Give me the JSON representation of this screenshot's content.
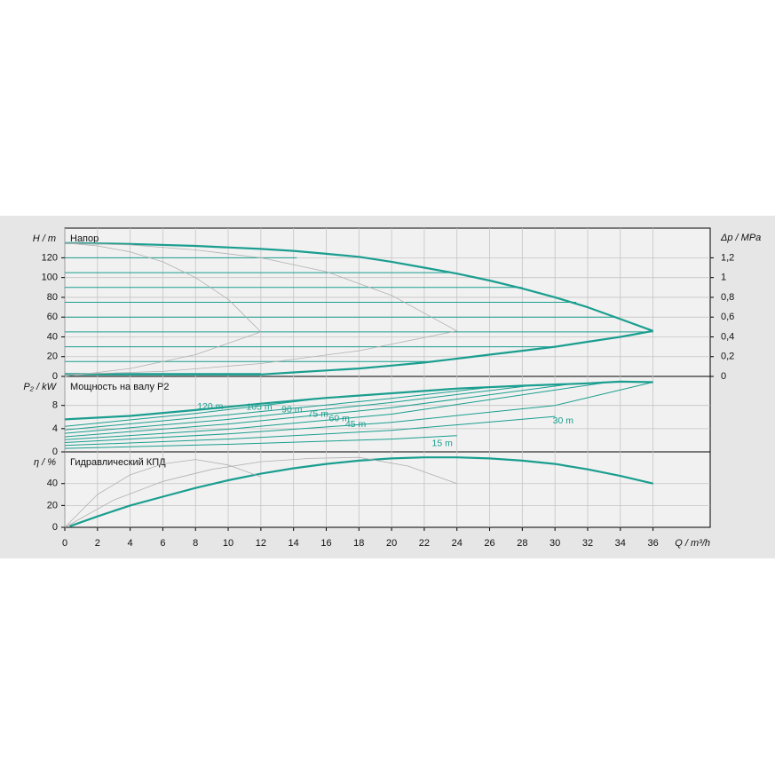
{
  "chart_data": [
    {
      "type": "line",
      "title": "Напор",
      "ylabel": "H / m",
      "y2label": "Δp / MPa",
      "ylim": [
        0,
        150
      ],
      "yticks": [
        0,
        20,
        40,
        60,
        80,
        100,
        120
      ],
      "y2lim": [
        0,
        1.5
      ],
      "y2ticks": [
        0,
        {
          "value": 0.2,
          "label": "0,2"
        },
        {
          "value": 0.4,
          "label": "0,4"
        },
        {
          "value": 0.6,
          "label": "0,6"
        },
        {
          "value": 0.8,
          "label": "0,8"
        },
        {
          "value": 1,
          "label": "1"
        },
        {
          "value": 1.2,
          "label": "1,2"
        }
      ],
      "grid": true,
      "series": [
        {
          "color": "#1a9e8f",
          "width": 2.2,
          "x": [
            0,
            4,
            8,
            12,
            14,
            16,
            18,
            20,
            22,
            24,
            26,
            28,
            30,
            32,
            34,
            36
          ],
          "values": [
            135,
            134,
            132,
            129,
            127,
            124,
            121,
            116,
            110,
            104,
            97,
            89,
            80,
            70,
            58,
            46
          ]
        },
        {
          "color": "#1a9e8f",
          "width": 2.2,
          "x": [
            0,
            8,
            12,
            14,
            16,
            18,
            20,
            22,
            24,
            26,
            28,
            30,
            32,
            34,
            36
          ],
          "values": [
            2,
            2,
            2,
            4,
            6,
            8,
            11,
            14,
            18,
            22,
            26,
            30,
            35,
            40,
            46
          ]
        },
        {
          "color": "#1a9e8f",
          "width": 1,
          "x": [
            0,
            14.2
          ],
          "values": [
            120,
            120
          ]
        },
        {
          "color": "#1a9e8f",
          "width": 1,
          "x": [
            0,
            23.5
          ],
          "values": [
            105,
            105
          ]
        },
        {
          "color": "#1a9e8f",
          "width": 1,
          "x": [
            0,
            28
          ],
          "values": [
            90,
            90
          ]
        },
        {
          "color": "#1a9e8f",
          "width": 1,
          "x": [
            0,
            31.3
          ],
          "values": [
            75,
            75
          ]
        },
        {
          "color": "#1a9e8f",
          "width": 1,
          "x": [
            0,
            33.6
          ],
          "values": [
            60,
            60
          ]
        },
        {
          "color": "#1a9e8f",
          "width": 1,
          "x": [
            0,
            36
          ],
          "values": [
            45,
            45
          ]
        },
        {
          "color": "#1a9e8f",
          "width": 1,
          "x": [
            0,
            30
          ],
          "values": [
            30,
            30
          ]
        },
        {
          "color": "#1a9e8f",
          "width": 1,
          "x": [
            0,
            22.2
          ],
          "values": [
            15,
            15
          ]
        },
        {
          "color": "#1a9e8f",
          "width": 1,
          "x": [
            0,
            12
          ],
          "values": [
            3,
            3
          ]
        },
        {
          "color": "#b0b0b0",
          "width": 0.8,
          "x": [
            0,
            2,
            4,
            6,
            8,
            10,
            12
          ],
          "values": [
            135,
            132,
            126,
            116,
            100,
            78,
            45
          ]
        },
        {
          "color": "#b0b0b0",
          "width": 0.8,
          "x": [
            0,
            4,
            8,
            12
          ],
          "values": [
            0,
            8,
            22,
            45
          ]
        },
        {
          "color": "#b0b0b0",
          "width": 0.8,
          "x": [
            0,
            4,
            8,
            12,
            16,
            20,
            24
          ],
          "values": [
            135,
            133,
            128,
            120,
            106,
            82,
            46
          ]
        },
        {
          "color": "#b0b0b0",
          "width": 0.8,
          "x": [
            0,
            6,
            12,
            18,
            24
          ],
          "values": [
            2,
            5,
            13,
            26,
            46
          ]
        }
      ]
    },
    {
      "type": "line",
      "title": "Мощность на валу P2",
      "ylabel": "P₂ / kW",
      "ylim": [
        0,
        13
      ],
      "yticks": [
        0,
        4,
        8
      ],
      "grid": true,
      "series": [
        {
          "color": "#1a9e8f",
          "width": 2.2,
          "x": [
            0,
            4,
            8,
            12,
            16,
            20,
            24,
            28,
            32,
            34,
            36
          ],
          "values": [
            5.6,
            6.2,
            7.2,
            8.3,
            9.3,
            10.1,
            10.9,
            11.4,
            11.8,
            12.1,
            12
          ]
        },
        {
          "name": "120 m",
          "color": "#1a9e8f",
          "width": 1,
          "x": [
            0,
            8,
            16,
            22
          ],
          "values": [
            4.4,
            6.6,
            9.3,
            10.5
          ]
        },
        {
          "name": "105 m",
          "color": "#1a9e8f",
          "width": 1,
          "x": [
            0,
            10,
            20,
            26
          ],
          "values": [
            3.8,
            6.4,
            9.2,
            11.1
          ]
        },
        {
          "name": "90 m",
          "color": "#1a9e8f",
          "width": 1,
          "x": [
            0,
            10,
            20,
            29
          ],
          "values": [
            3.2,
            5.6,
            8.5,
            11.6
          ]
        },
        {
          "name": "75 m",
          "color": "#1a9e8f",
          "width": 1,
          "x": [
            0,
            10,
            20,
            31
          ],
          "values": [
            2.6,
            4.8,
            7.6,
            11.7
          ]
        },
        {
          "name": "60 m",
          "color": "#1a9e8f",
          "width": 1,
          "x": [
            0,
            10,
            20,
            33
          ],
          "values": [
            2.1,
            3.9,
            6.5,
            11.9
          ]
        },
        {
          "name": "45 m",
          "color": "#1a9e8f",
          "width": 1,
          "x": [
            0,
            10,
            20,
            30,
            36
          ],
          "values": [
            1.6,
            3.1,
            5.1,
            8,
            12
          ]
        },
        {
          "name": "30 m",
          "color": "#1a9e8f",
          "width": 1,
          "x": [
            0,
            10,
            20,
            30
          ],
          "values": [
            1.1,
            2.2,
            3.7,
            6.1
          ]
        },
        {
          "name": "15 m",
          "color": "#1a9e8f",
          "width": 1,
          "x": [
            0,
            10,
            20,
            24
          ],
          "values": [
            0.6,
            1.3,
            2.2,
            2.8
          ]
        }
      ]
    },
    {
      "type": "line",
      "title": "Гидравлический КПД",
      "ylabel": "η / %",
      "xlabel": "Q / m³/h",
      "ylim": [
        0,
        69
      ],
      "yticks": [
        0,
        20,
        40
      ],
      "xlim": [
        0,
        39.5
      ],
      "xticks": [
        0,
        2,
        4,
        6,
        8,
        10,
        12,
        14,
        16,
        18,
        20,
        22,
        24,
        26,
        28,
        30,
        32,
        34,
        36
      ],
      "grid": true,
      "series": [
        {
          "color": "#1a9e8f",
          "width": 2.2,
          "x": [
            0.3,
            2,
            4,
            6,
            8,
            10,
            12,
            14,
            16,
            18,
            20,
            22,
            24,
            26,
            28,
            30,
            32,
            34,
            36
          ],
          "values": [
            1,
            10,
            20,
            28,
            36,
            43,
            49,
            54,
            58,
            61,
            63,
            64,
            64,
            63,
            61,
            58,
            53,
            47,
            40
          ]
        },
        {
          "color": "#b0b0b0",
          "width": 0.8,
          "x": [
            0,
            2,
            4,
            6,
            8,
            10,
            12
          ],
          "values": [
            0,
            30,
            48,
            58,
            62,
            57,
            46
          ]
        },
        {
          "color": "#b0b0b0",
          "width": 0.8,
          "x": [
            0,
            3,
            6,
            9,
            12,
            15,
            18,
            21,
            24
          ],
          "values": [
            0,
            25,
            42,
            53,
            60,
            63,
            64,
            56,
            40
          ]
        }
      ]
    }
  ]
}
